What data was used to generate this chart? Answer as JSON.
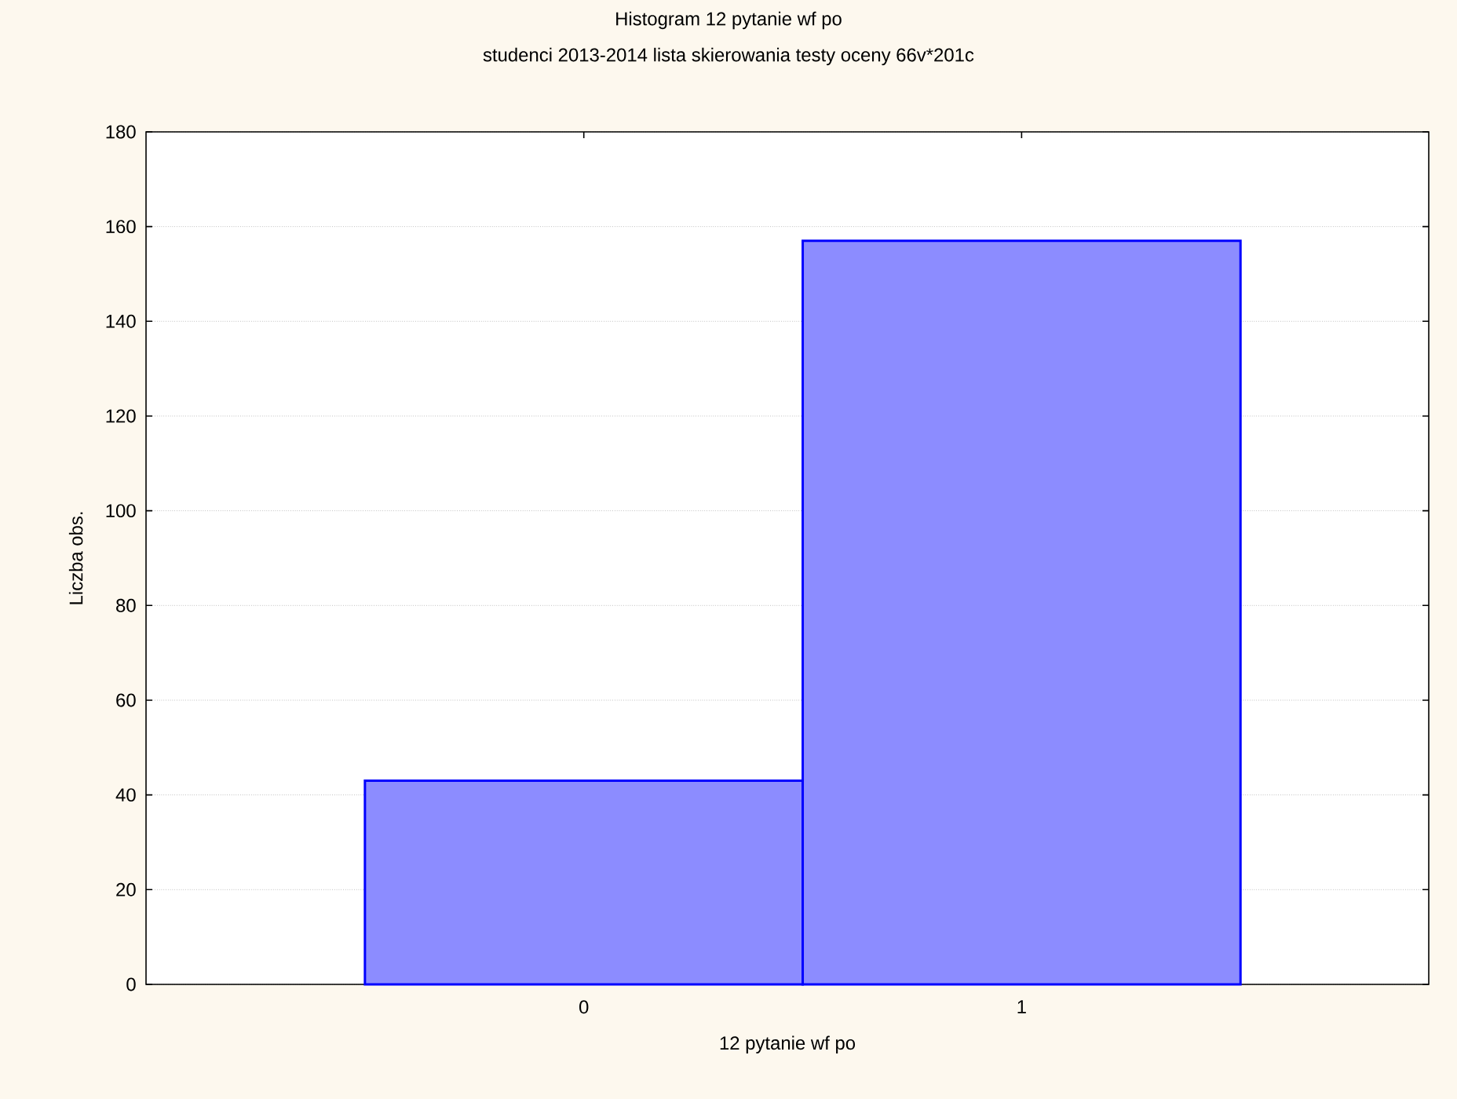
{
  "chart_data": {
    "type": "histogram",
    "title": "Histogram    12 pytanie wf po",
    "subtitle": "studenci 2013-2014 lista skierowania testy oceny 66v*201c",
    "xlabel": "12 pytanie wf po",
    "ylabel": "Liczba obs.",
    "bins": [
      -0.5,
      0.5,
      1.5
    ],
    "values": [
      43,
      157
    ],
    "color": "#0000ff",
    "xlim": [
      -1,
      1.93
    ],
    "xticks": [
      0,
      1
    ],
    "ylim": [
      0,
      180
    ],
    "yticks": [
      0,
      20,
      40,
      60,
      80,
      100,
      120,
      140,
      160,
      180
    ],
    "grid": "y"
  }
}
